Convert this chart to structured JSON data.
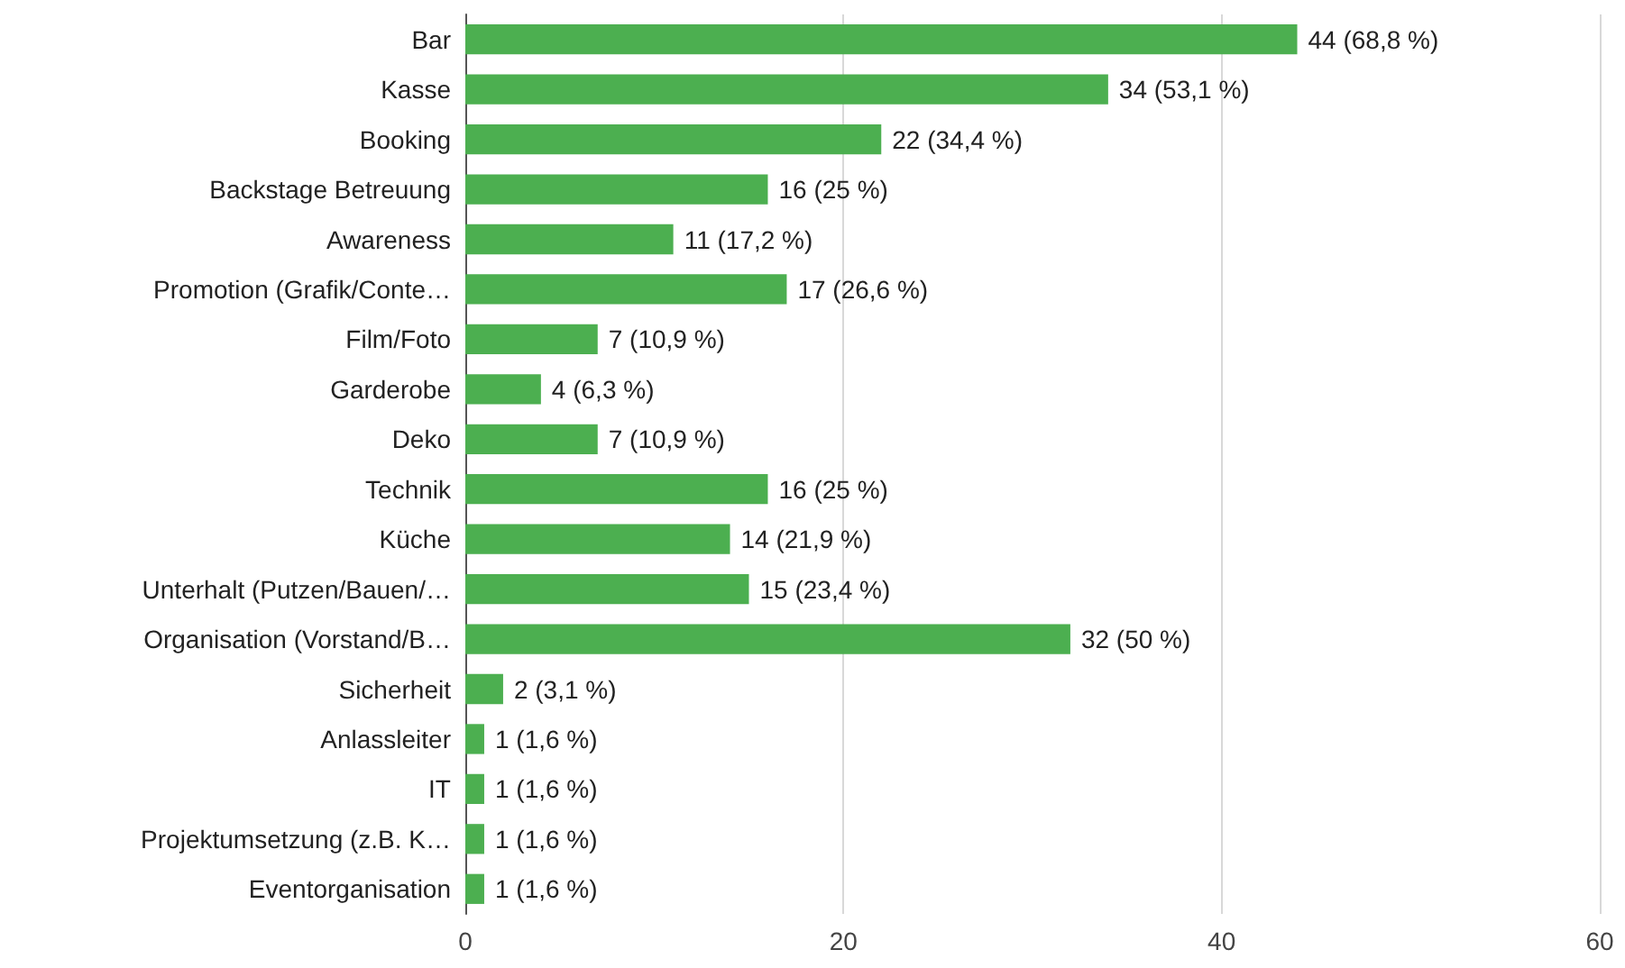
{
  "chart_data": {
    "type": "bar",
    "orientation": "horizontal",
    "categories": [
      "Bar",
      "Kasse",
      "Booking",
      "Backstage Betreuung",
      "Awareness",
      "Promotion (Grafik/Conte…",
      "Film/Foto",
      "Garderobe",
      "Deko",
      "Technik",
      "Küche",
      "Unterhalt (Putzen/Bauen/…",
      "Organisation (Vorstand/B…",
      "Sicherheit",
      "Anlassleiter",
      "IT",
      "Projektumsetzung (z.B. K…",
      "Eventorganisation"
    ],
    "values": [
      44,
      34,
      22,
      16,
      11,
      17,
      7,
      4,
      7,
      16,
      14,
      15,
      32,
      2,
      1,
      1,
      1,
      1
    ],
    "value_labels": [
      "44 (68,8 %)",
      "34 (53,1 %)",
      "22 (34,4 %)",
      "16 (25 %)",
      "11 (17,2 %)",
      "17 (26,6 %)",
      "7 (10,9 %)",
      "4 (6,3 %)",
      "7 (10,9 %)",
      "16 (25 %)",
      "14 (21,9 %)",
      "15 (23,4 %)",
      "32 (50 %)",
      "2 (3,1 %)",
      "1 (1,6 %)",
      "1 (1,6 %)",
      "1 (1,6 %)",
      "1 (1,6 %)"
    ],
    "color": "#4caf50",
    "xlim": [
      0,
      60
    ],
    "xticks": [
      0,
      20,
      40,
      60
    ],
    "grid": "x"
  }
}
